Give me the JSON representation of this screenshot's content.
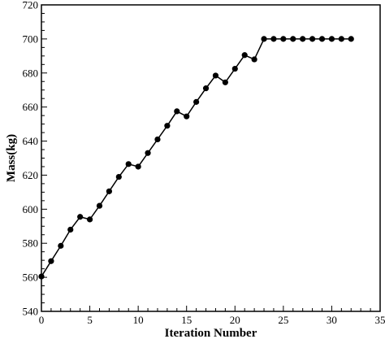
{
  "chart_data": {
    "type": "line",
    "xlabel": "Iteration Number",
    "ylabel": "Mass(kg)",
    "xlim": [
      0,
      35
    ],
    "ylim": [
      540,
      720
    ],
    "x_ticks": [
      "0",
      "5",
      "10",
      "15",
      "20",
      "25",
      "30",
      "35"
    ],
    "y_ticks": [
      "540",
      "560",
      "580",
      "600",
      "620",
      "640",
      "660",
      "680",
      "700",
      "720"
    ],
    "grid": false,
    "legend": "none",
    "series": [
      {
        "color": "#000000",
        "marker": "circle",
        "x": [
          0,
          1,
          2,
          3,
          4,
          5,
          6,
          7,
          8,
          9,
          10,
          11,
          12,
          13,
          14,
          15,
          16,
          17,
          18,
          19,
          20,
          21,
          22,
          23,
          24,
          25,
          26,
          27,
          28,
          29,
          30,
          31,
          32
        ],
        "y": [
          560.5,
          569.5,
          578.5,
          588,
          595.5,
          594,
          602,
          610.5,
          619,
          626.5,
          625,
          633,
          641,
          649,
          657.5,
          654.5,
          663,
          671,
          678.5,
          674.5,
          682.5,
          690.5,
          688,
          700,
          700,
          700,
          700,
          700,
          700,
          700,
          700,
          700,
          700
        ]
      }
    ]
  }
}
